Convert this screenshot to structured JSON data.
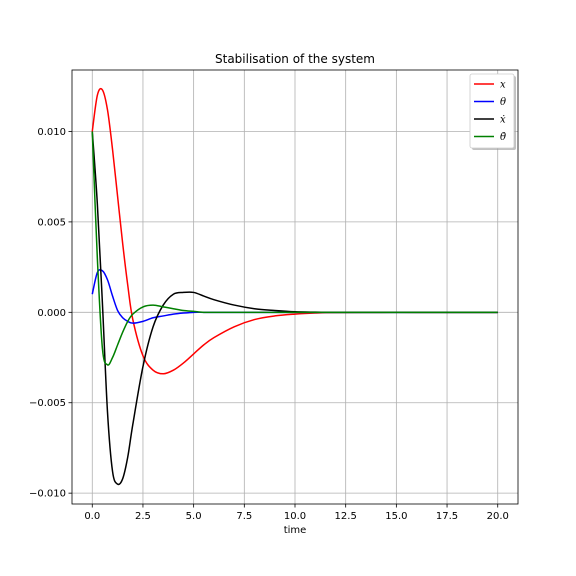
{
  "chart_data": {
    "type": "line",
    "title": "Stabilisation of the system",
    "xlabel": "time",
    "ylabel": "",
    "xlim": [
      -1.0,
      21.0
    ],
    "ylim": [
      -0.0106,
      0.0134
    ],
    "grid": true,
    "legend_position": "top-right",
    "x_ticks": [
      0.0,
      2.5,
      5.0,
      7.5,
      10.0,
      12.5,
      15.0,
      17.5,
      20.0
    ],
    "x_tick_labels": [
      "0.0",
      "2.5",
      "5.0",
      "7.5",
      "10.0",
      "12.5",
      "15.0",
      "17.5",
      "20.0"
    ],
    "y_ticks": [
      -0.01,
      -0.005,
      0.0,
      0.005,
      0.01
    ],
    "y_tick_labels": [
      "−0.010",
      "−0.005",
      "0.000",
      "0.005",
      "0.010"
    ],
    "x": [
      0,
      0.25,
      0.5,
      0.75,
      1.0,
      1.25,
      1.5,
      1.75,
      2.0,
      2.5,
      3.0,
      3.5,
      4.0,
      4.5,
      5.0,
      5.5,
      6.0,
      7.0,
      8.0,
      9.0,
      10.0,
      11.0,
      12.0,
      14.0,
      16.0,
      18.0,
      20.0
    ],
    "series": [
      {
        "name": "x",
        "color": "#ff0000",
        "values": [
          0.01,
          0.012,
          0.0123,
          0.0112,
          0.009,
          0.0064,
          0.0038,
          0.0015,
          -0.0004,
          -0.0024,
          -0.0032,
          -0.0034,
          -0.0032,
          -0.0028,
          -0.0023,
          -0.0018,
          -0.0014,
          -0.0008,
          -0.0004,
          -0.0002,
          -0.0001,
          -4e-05,
          -1e-05,
          0,
          0,
          0,
          0
        ]
      },
      {
        "name": "θ",
        "color": "#0000ff",
        "values": [
          0.001,
          0.0022,
          0.0023,
          0.0018,
          0.0009,
          0.0001,
          -0.0003,
          -0.0005,
          -0.0006,
          -0.0005,
          -0.0003,
          -0.0002,
          -0.0001,
          -4e-05,
          0,
          0,
          0,
          0,
          0,
          0,
          0,
          0,
          0,
          0,
          0,
          0,
          0
        ]
      },
      {
        "name": "ẋ",
        "color": "#000000",
        "values": [
          0.01,
          0.006,
          0.0005,
          -0.0055,
          -0.0088,
          -0.0095,
          -0.0092,
          -0.008,
          -0.0062,
          -0.003,
          -0.0008,
          0.0004,
          0.001,
          0.0011,
          0.0011,
          0.0009,
          0.0007,
          0.0004,
          0.0002,
          0.0001,
          3e-05,
          1e-05,
          0,
          0,
          0,
          0,
          0
        ]
      },
      {
        "name": "θ̇",
        "color": "#008000",
        "values": [
          0.01,
          0.003,
          -0.002,
          -0.0029,
          -0.0025,
          -0.0018,
          -0.0011,
          -0.0005,
          -0.0001,
          0.0003,
          0.0004,
          0.0003,
          0.0002,
          0.0001,
          5e-05,
          0,
          0,
          0,
          0,
          0,
          0,
          0,
          0,
          0,
          0,
          0,
          0
        ]
      }
    ]
  }
}
